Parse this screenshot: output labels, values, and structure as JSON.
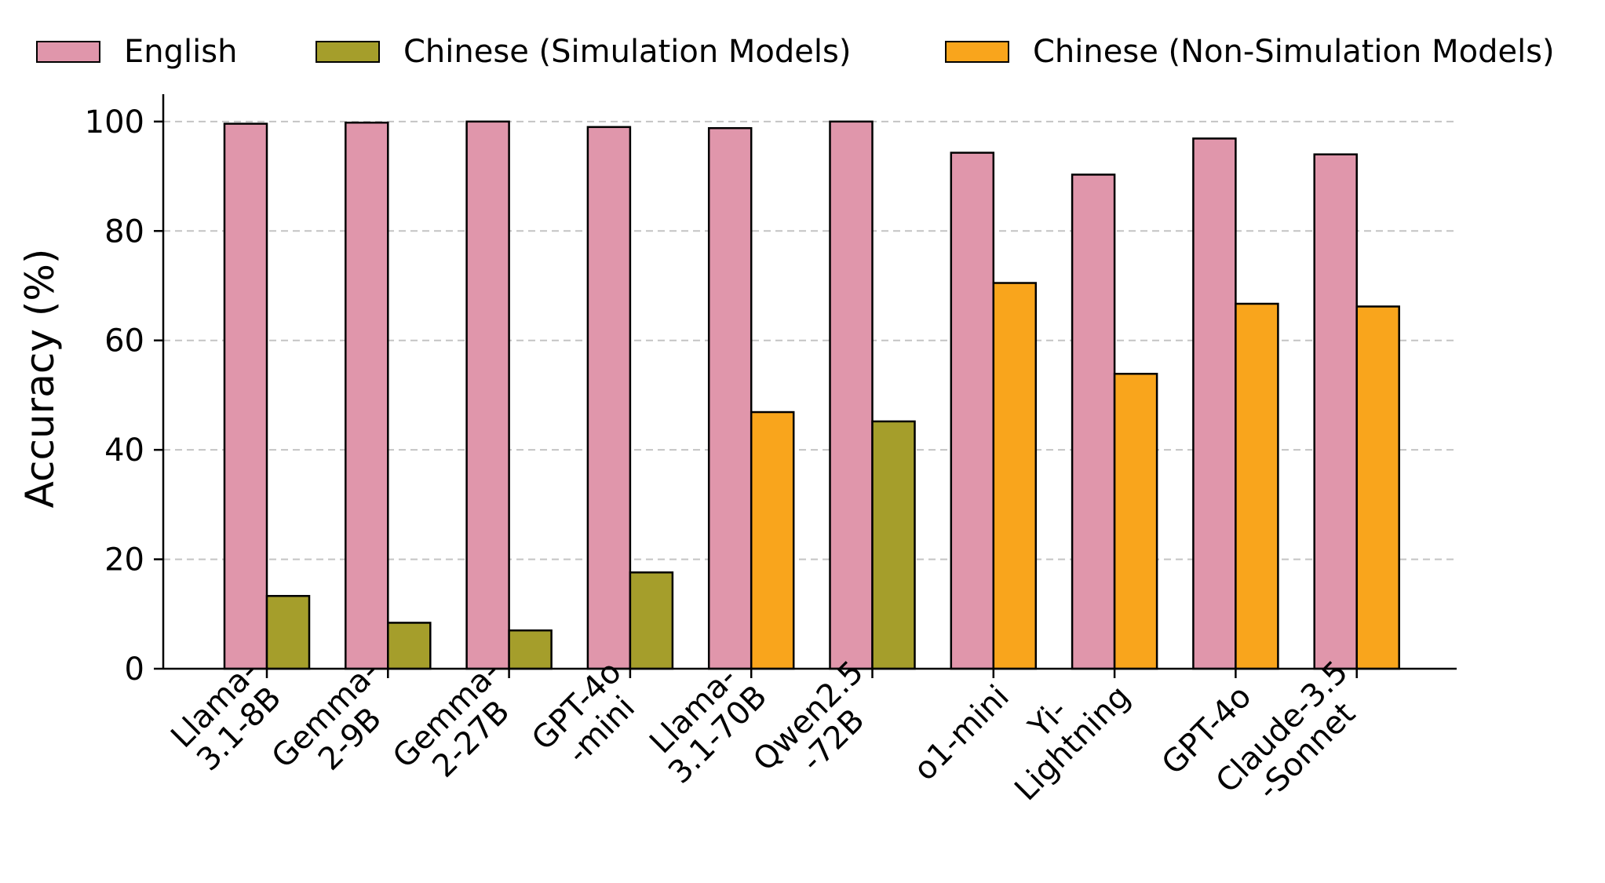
{
  "chart_data": {
    "type": "bar",
    "title": "",
    "xlabel": "",
    "ylabel": "Accuracy (%)",
    "ylim": [
      0,
      105
    ],
    "yticks": [
      0,
      20,
      40,
      60,
      80,
      100
    ],
    "grid": "horizontal dashed",
    "legend_position": "top",
    "categories": [
      "Llama-\n3.1-8B",
      "Gemma-\n2-9B",
      "Gemma-\n2-27B",
      "GPT-4o\n-mini",
      "Llama-\n3.1-70B",
      "Qwen2.5\n-72B",
      "o1-mini",
      "Yi-\nLightning",
      "GPT-4o",
      "Claude-3.5\n-Sonnet"
    ],
    "series": [
      {
        "name": "English",
        "color": "#e096ab",
        "values": [
          99.6,
          99.8,
          100.0,
          99.0,
          98.8,
          100.0,
          94.3,
          90.3,
          96.9,
          94.0
        ]
      },
      {
        "name": "Chinese",
        "values": [
          13.3,
          8.4,
          7.0,
          17.6,
          46.9,
          45.2,
          70.5,
          53.9,
          66.7,
          66.2
        ],
        "bar_colors": [
          "#a59e2b",
          "#a59e2b",
          "#a59e2b",
          "#a59e2b",
          "#f9a51c",
          "#a59e2b",
          "#f9a51c",
          "#f9a51c",
          "#f9a51c",
          "#f9a51c"
        ]
      }
    ],
    "legend": [
      {
        "label": "English",
        "color": "#e096ab"
      },
      {
        "label": "Chinese (Simulation Models)",
        "color": "#a59e2b"
      },
      {
        "label": "Chinese (Non-Simulation Models)",
        "color": "#f9a51c"
      }
    ]
  }
}
